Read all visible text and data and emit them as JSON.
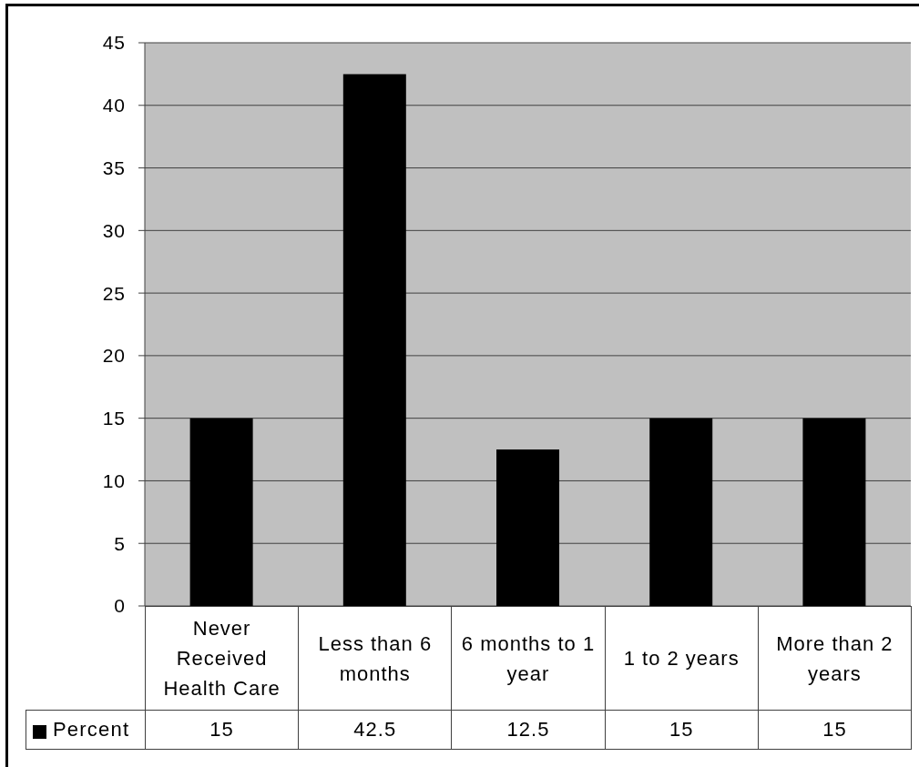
{
  "chart_data": {
    "type": "bar",
    "categories": [
      "Never Received Health Care",
      "Less than 6 months",
      "6 months to 1 year",
      "1 to 2 years",
      "More than 2 years"
    ],
    "series": [
      {
        "name": "Percent",
        "color": "#000000",
        "values": [
          15,
          42.5,
          12.5,
          15,
          15
        ]
      }
    ],
    "ylim": [
      0,
      45
    ],
    "yticks": [
      0,
      5,
      10,
      15,
      20,
      25,
      30,
      35,
      40,
      45
    ],
    "grid": "y",
    "legend": "bottom",
    "data_labels": true
  }
}
